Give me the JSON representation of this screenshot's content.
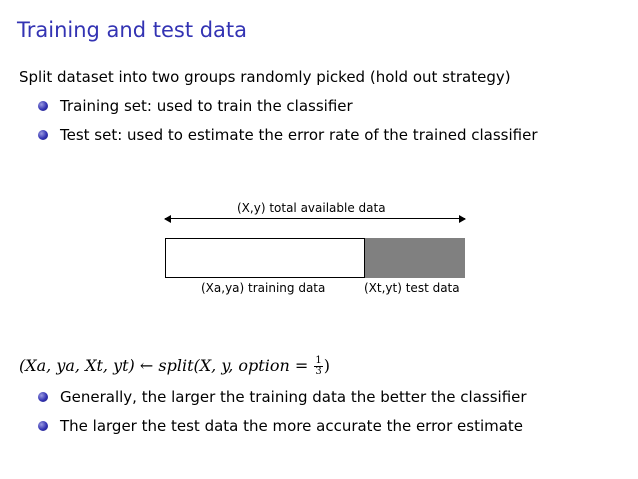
{
  "title": "Training and test data",
  "intro": "Split dataset into two groups randomly picked (hold out strategy)",
  "bullets_top": [
    "Training set: used to train the classifier",
    "Test set: used to estimate the error rate of the trained classifier"
  ],
  "diagram": {
    "total_label": "(X,y) total available data",
    "train_label": "(Xa,ya) training data",
    "test_label": "(Xt,yt) test data",
    "train_fraction": 0.667,
    "test_fraction": 0.333,
    "train_color": "#ffffff",
    "test_color": "#808080"
  },
  "formula": {
    "lhs": "(Xa, ya, Xt, yt)",
    "arrow": "←",
    "call_start": "split(X, y, option = ",
    "frac_num": "1",
    "frac_den": "3",
    "call_end": ")"
  },
  "bullets_bottom": [
    "Generally, the larger the training data the better the classifier",
    "The larger the test data the more accurate the error estimate"
  ],
  "colors": {
    "title": "#3333b3",
    "bullet": "#3333b3"
  }
}
